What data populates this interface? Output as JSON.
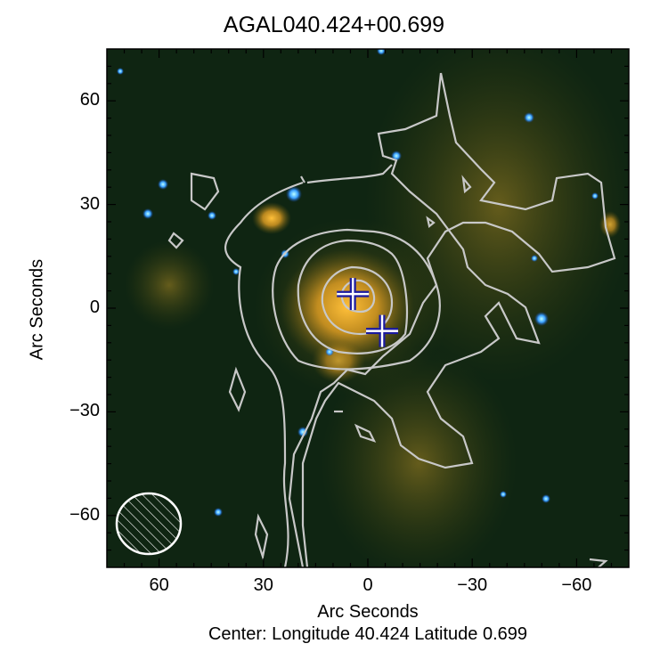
{
  "chart_data": {
    "type": "image",
    "title": "AGAL040.424+00.699",
    "xlabel": "Arc Seconds",
    "ylabel": "Arc Seconds",
    "subtitle": "Center:  Longitude 40.424 Latitude 0.699",
    "xlim": [
      75,
      -75
    ],
    "ylim": [
      -75,
      75
    ],
    "xticks": [
      60,
      30,
      0,
      -30,
      -60
    ],
    "xtick_labels": [
      "60",
      "30",
      "0",
      "−30",
      "−60"
    ],
    "yticks": [
      60,
      30,
      0,
      -30,
      -60
    ],
    "ytick_labels": [
      "60",
      "30",
      "0",
      "−30",
      "−60"
    ],
    "markers": [
      {
        "symbol": "cross",
        "x": 4.3,
        "y": 4.1
      },
      {
        "symbol": "cross",
        "x": -4.1,
        "y": -6.6
      }
    ],
    "beam": {
      "x": 62,
      "y": -62,
      "shape": "hatched-ellipse"
    },
    "colors": {
      "background": "#0f2512",
      "emission": "#e0a020",
      "contours": "#c8c8c8",
      "markers": "#1a1aa0"
    }
  }
}
